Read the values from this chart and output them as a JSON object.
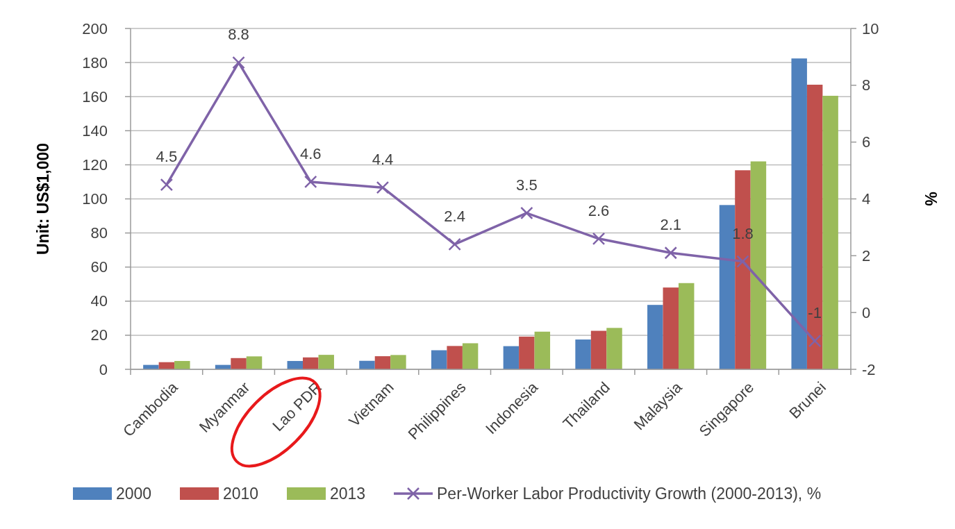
{
  "chart_data": {
    "type": "bar",
    "categories": [
      "Cambodia",
      "Myanmar",
      "Lao PDR",
      "Vietnam",
      "Philippines",
      "Indonesia",
      "Thailand",
      "Malaysia",
      "Singapore",
      "Brunei"
    ],
    "series": [
      {
        "name": "2000",
        "color": "#4f81bd",
        "values": [
          2.6,
          2.6,
          4.9,
          5.0,
          11.2,
          13.6,
          17.5,
          37.8,
          96.4,
          182.4
        ]
      },
      {
        "name": "2010",
        "color": "#c0504d",
        "values": [
          4.2,
          6.6,
          7.0,
          7.7,
          13.7,
          19.2,
          22.6,
          48.0,
          116.8,
          167.0
        ]
      },
      {
        "name": "2013",
        "color": "#9bbb59",
        "values": [
          4.9,
          7.6,
          8.5,
          8.4,
          15.3,
          22.1,
          24.3,
          50.6,
          122.0,
          160.5
        ]
      },
      {
        "name": "Per-Worker Labor Productivity Growth (2000-2013), %",
        "type": "line",
        "axis": "y2",
        "color": "#7f63a8",
        "values": [
          4.5,
          8.8,
          4.6,
          4.4,
          2.4,
          3.5,
          2.6,
          2.1,
          1.8,
          -1
        ],
        "value_labels": [
          "4.5",
          "8.8",
          "4.6",
          "4.4",
          "2.4",
          "3.5",
          "2.6",
          "2.1",
          "1.8",
          "-1"
        ]
      }
    ],
    "ylabel": "Unit: US$1,000",
    "y2label": "%",
    "ylim": [
      0,
      200
    ],
    "yticks": [
      0,
      20,
      40,
      60,
      80,
      100,
      120,
      140,
      160,
      180,
      200
    ],
    "y2lim": [
      -2,
      10
    ],
    "y2ticks": [
      -2,
      0,
      2,
      4,
      6,
      8,
      10
    ],
    "grid": "y",
    "legend": "bottom",
    "marker": "cross"
  }
}
